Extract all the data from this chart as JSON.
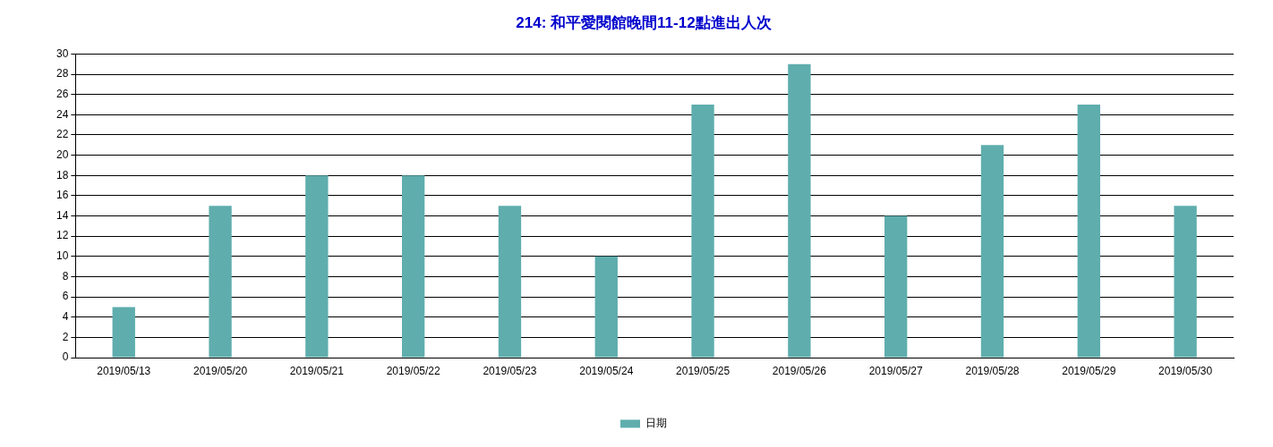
{
  "chart_data": {
    "type": "bar",
    "title": "214: 和平愛閱館晚間11-12點進出人次",
    "categories": [
      "2019/05/13",
      "2019/05/20",
      "2019/05/21",
      "2019/05/22",
      "2019/05/23",
      "2019/05/24",
      "2019/05/25",
      "2019/05/26",
      "2019/05/27",
      "2019/05/28",
      "2019/05/29",
      "2019/05/30"
    ],
    "series": [
      {
        "name": "日期",
        "color": "#5fadad",
        "values": [
          5,
          15,
          18,
          18,
          15,
          10,
          25,
          29,
          14,
          21,
          25,
          15
        ]
      }
    ],
    "ylim": [
      0,
      30
    ],
    "yticks": [
      0,
      2,
      4,
      6,
      8,
      10,
      12,
      14,
      16,
      18,
      20,
      22,
      24,
      26,
      28,
      30
    ],
    "grid": "y",
    "legend": "bottom"
  }
}
